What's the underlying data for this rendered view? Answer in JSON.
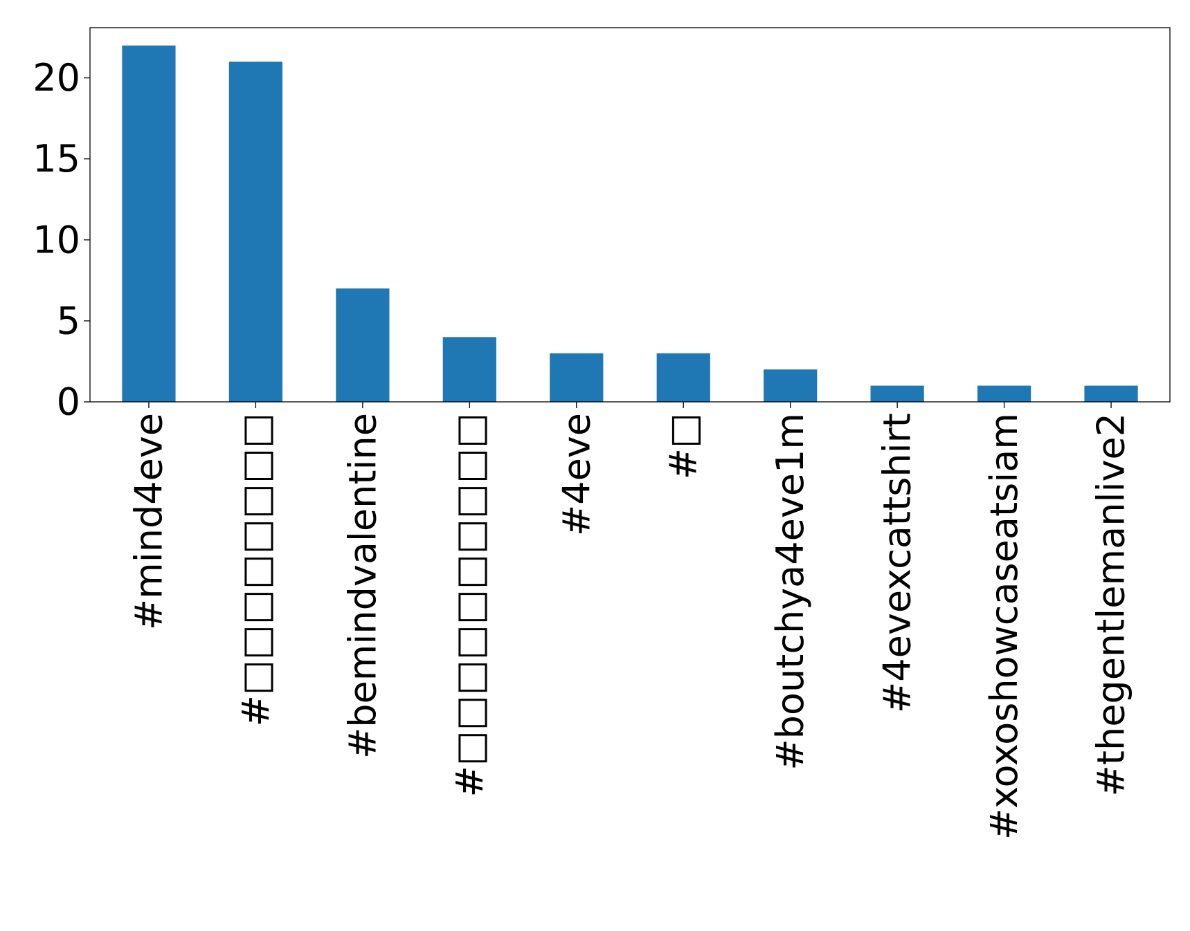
{
  "chart_data": {
    "type": "bar",
    "title": "",
    "xlabel": "",
    "ylabel": "",
    "categories": [
      "#mind4eve",
      "#□□□□□□□□",
      "#bemindvalentine",
      "#□□□□□□□□□□",
      "#4eve",
      "#□",
      "#boutchya4eve1m",
      "#4evexcattshirt",
      "#xoxoshowcaseatsiam",
      "#thegentlemanlive2"
    ],
    "values": [
      22,
      21,
      7,
      4,
      3,
      3,
      2,
      1,
      1,
      1
    ],
    "ylim": [
      0,
      23.1
    ],
    "yticks": [
      0,
      5,
      10,
      15,
      20
    ],
    "ytick_labels": [
      "0",
      "5",
      "10",
      "15",
      "20"
    ],
    "grid": false,
    "legend": "none",
    "bar_color": "#1f77b4"
  }
}
